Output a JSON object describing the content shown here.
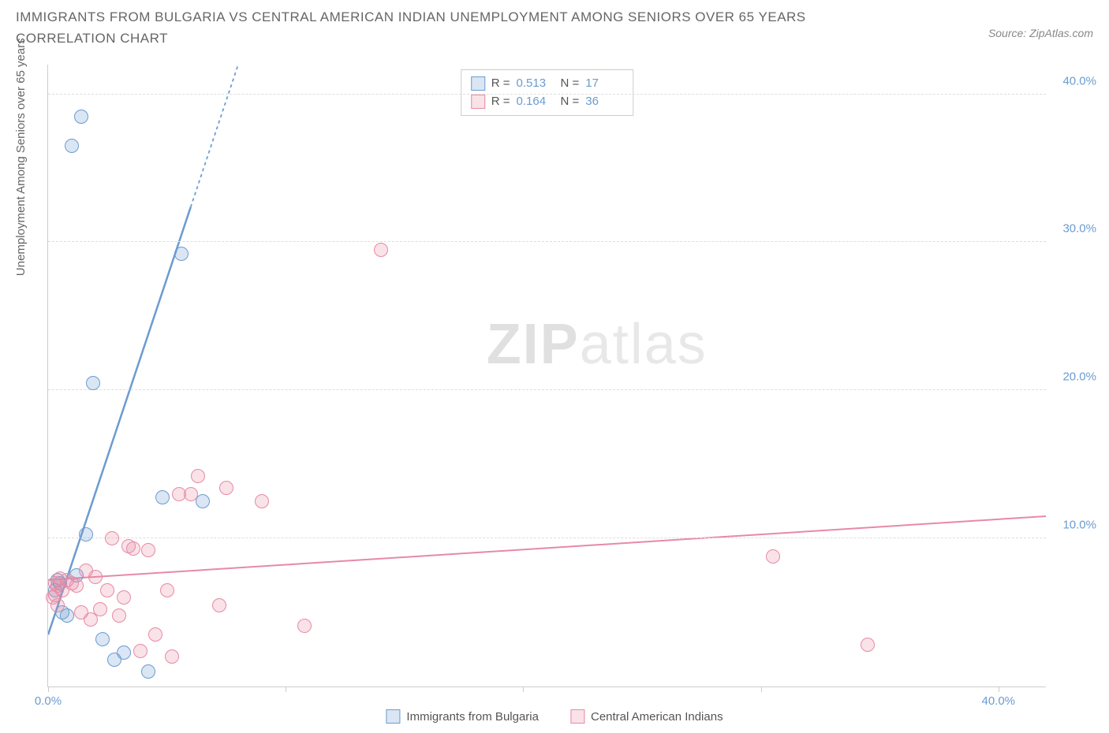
{
  "title": "IMMIGRANTS FROM BULGARIA VS CENTRAL AMERICAN INDIAN UNEMPLOYMENT AMONG SENIORS OVER 65 YEARS CORRELATION CHART",
  "source": "Source: ZipAtlas.com",
  "ylabel": "Unemployment Among Seniors over 65 years",
  "watermark_a": "ZIP",
  "watermark_b": "atlas",
  "chart": {
    "type": "scatter",
    "xlim": [
      0,
      42
    ],
    "ylim": [
      0,
      42
    ],
    "x_ticks": [
      0,
      10,
      20,
      30,
      40
    ],
    "y_ticks": [
      10,
      20,
      30,
      40
    ],
    "x_tick_labels": [
      "0.0%",
      "",
      "",
      "",
      "40.0%"
    ],
    "y_tick_labels": [
      "10.0%",
      "20.0%",
      "30.0%",
      "40.0%"
    ],
    "grid_color": "#dddddd",
    "axis_color": "#cccccc",
    "background_color": "#ffffff",
    "tick_label_color": "#6b9bd1",
    "marker_radius": 9,
    "marker_stroke_width": 1.5,
    "marker_fill_opacity": 0.25,
    "series": [
      {
        "name": "Immigrants from Bulgaria",
        "color": "#6b9bd1",
        "fill": "rgba(107,155,209,0.25)",
        "R": "0.513",
        "N": "17",
        "regression": {
          "x1": 0,
          "y1": 3.5,
          "x2": 8,
          "y2": 42,
          "solid_to_x": 6,
          "stroke_width": 2.5
        },
        "points": [
          [
            0.3,
            6.5
          ],
          [
            0.4,
            7.2
          ],
          [
            0.5,
            7.0
          ],
          [
            0.6,
            5.0
          ],
          [
            0.8,
            4.8
          ],
          [
            1.0,
            36.5
          ],
          [
            1.2,
            7.5
          ],
          [
            1.4,
            38.5
          ],
          [
            1.6,
            10.3
          ],
          [
            1.9,
            20.5
          ],
          [
            2.3,
            3.2
          ],
          [
            2.8,
            1.8
          ],
          [
            3.2,
            2.3
          ],
          [
            4.2,
            1.0
          ],
          [
            4.8,
            12.8
          ],
          [
            5.6,
            29.2
          ],
          [
            6.5,
            12.5
          ]
        ]
      },
      {
        "name": "Central American Indians",
        "color": "#e68aa5",
        "fill": "rgba(230,138,165,0.25)",
        "R": "0.164",
        "N": "36",
        "regression": {
          "x1": 0,
          "y1": 7.2,
          "x2": 42,
          "y2": 11.5,
          "solid_to_x": 42,
          "stroke_width": 2
        },
        "points": [
          [
            0.2,
            6.0
          ],
          [
            0.3,
            6.2
          ],
          [
            0.3,
            7.0
          ],
          [
            0.4,
            6.8
          ],
          [
            0.4,
            5.5
          ],
          [
            0.5,
            7.3
          ],
          [
            0.6,
            6.5
          ],
          [
            0.8,
            7.2
          ],
          [
            1.0,
            7.0
          ],
          [
            1.2,
            6.8
          ],
          [
            1.4,
            5.0
          ],
          [
            1.6,
            7.8
          ],
          [
            1.8,
            4.5
          ],
          [
            2.0,
            7.4
          ],
          [
            2.2,
            5.2
          ],
          [
            2.5,
            6.5
          ],
          [
            2.7,
            10.0
          ],
          [
            3.0,
            4.8
          ],
          [
            3.2,
            6.0
          ],
          [
            3.4,
            9.5
          ],
          [
            3.6,
            9.3
          ],
          [
            3.9,
            2.4
          ],
          [
            4.2,
            9.2
          ],
          [
            4.5,
            3.5
          ],
          [
            5.0,
            6.5
          ],
          [
            5.2,
            2.0
          ],
          [
            5.5,
            13.0
          ],
          [
            6.0,
            13.0
          ],
          [
            6.3,
            14.2
          ],
          [
            7.2,
            5.5
          ],
          [
            7.5,
            13.4
          ],
          [
            9.0,
            12.5
          ],
          [
            10.8,
            4.1
          ],
          [
            14.0,
            29.5
          ],
          [
            30.5,
            8.8
          ],
          [
            34.5,
            2.8
          ]
        ]
      }
    ]
  },
  "legend": {
    "series1_label": "Immigrants from Bulgaria",
    "series2_label": "Central American Indians"
  }
}
